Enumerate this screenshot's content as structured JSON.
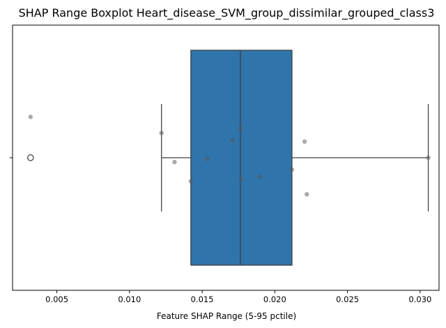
{
  "chart_data": {
    "type": "boxplot",
    "orientation": "horizontal",
    "title": "SHAP Range Boxplot Heart_disease_SVM_group_dissimilar_grouped_class3",
    "xlabel": "Feature SHAP Range (5-95 pctile)",
    "ylabel": "",
    "xlim": [
      0.00195,
      0.0313
    ],
    "xticks": [
      0.005,
      0.01,
      0.015,
      0.02,
      0.025,
      0.03
    ],
    "xtick_labels": [
      "0.005",
      "0.010",
      "0.015",
      "0.020",
      "0.025",
      "0.030"
    ],
    "grid": false,
    "box": {
      "q1": 0.01422,
      "median": 0.01763,
      "q3": 0.02118,
      "whisker_low": 0.0122,
      "whisker_high": 0.03056,
      "fliers": [
        0.00319
      ],
      "fill_color": "#2f74ab",
      "line_color": "#3f3f3f"
    },
    "points": {
      "color": "#555555",
      "values": [
        0.00319,
        0.0122,
        0.0131,
        0.01422,
        0.01535,
        0.0171,
        0.01763,
        0.01768,
        0.019,
        0.02118,
        0.02205,
        0.0222,
        0.03056
      ],
      "jitter": [
        -0.38,
        -0.23,
        0.04,
        0.22,
        0.01,
        -0.16,
        -0.27,
        0.2,
        0.18,
        0.11,
        -0.15,
        0.34,
        0.0
      ]
    }
  }
}
